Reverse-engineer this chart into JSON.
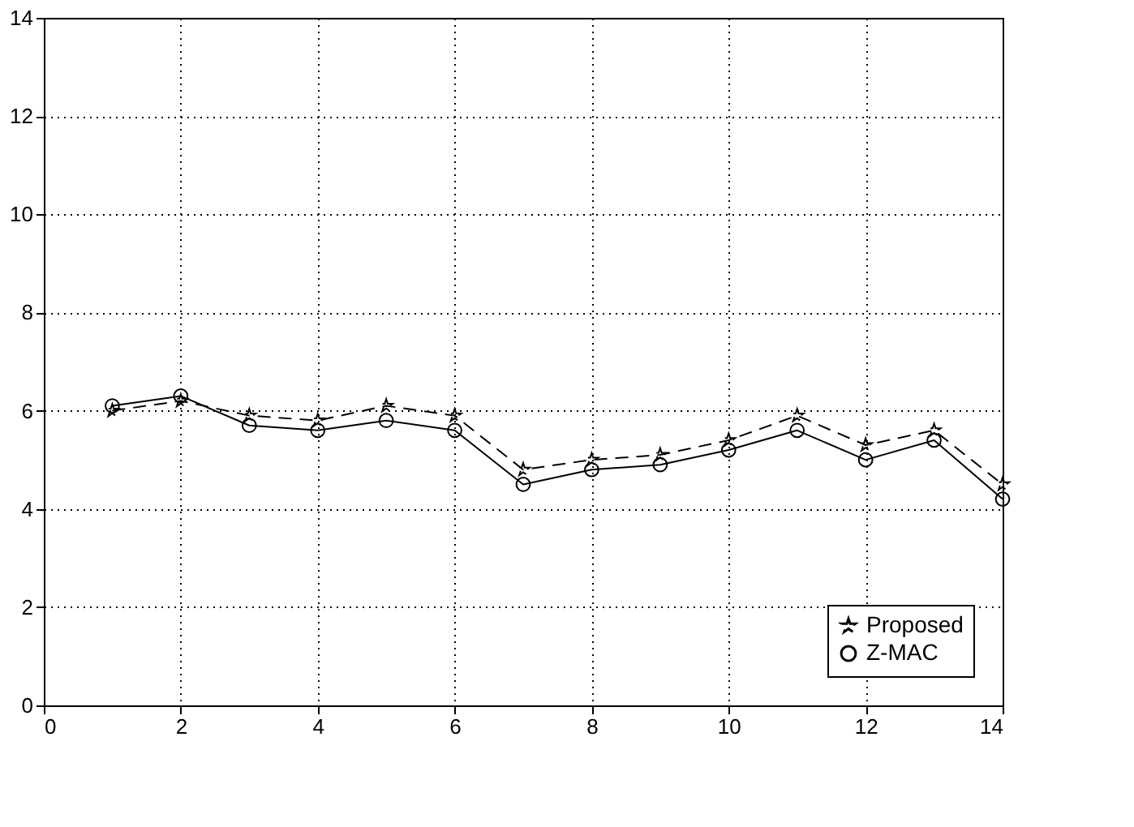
{
  "chart_data": {
    "type": "line",
    "x": [
      1,
      2,
      3,
      4,
      5,
      6,
      7,
      8,
      9,
      10,
      11,
      12,
      13,
      14
    ],
    "series": [
      {
        "name": "Proposed",
        "color": "#000000",
        "marker": "star",
        "line_style": "dashed",
        "values": [
          6.0,
          6.2,
          5.9,
          5.8,
          6.1,
          5.9,
          4.8,
          5.0,
          5.1,
          5.4,
          5.9,
          5.3,
          5.6,
          4.5
        ]
      },
      {
        "name": "Z-MAC",
        "color": "#000000",
        "marker": "circle",
        "line_style": "solid",
        "values": [
          6.1,
          6.3,
          5.7,
          5.6,
          5.8,
          5.6,
          4.5,
          4.8,
          4.9,
          5.2,
          5.6,
          5.0,
          5.4,
          4.2
        ]
      }
    ],
    "xlim": [
      0,
      14
    ],
    "xticks": [
      0,
      2,
      4,
      6,
      8,
      10,
      12,
      14
    ],
    "ylim": [
      0,
      14
    ],
    "yticks": [
      0,
      2,
      4,
      6,
      8,
      10,
      12,
      14
    ],
    "grid": true,
    "legend": "bottom right"
  }
}
